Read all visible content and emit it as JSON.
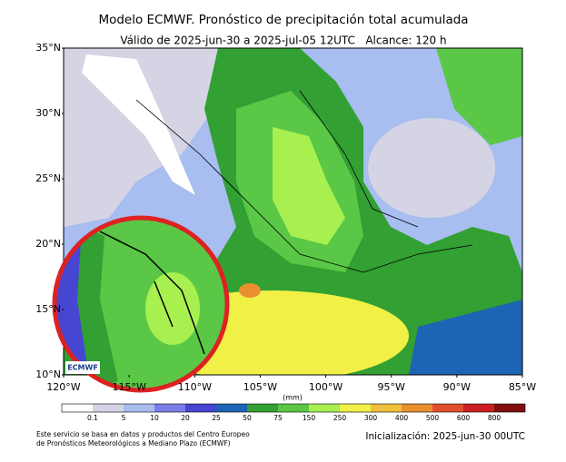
{
  "title": "Modelo ECMWF. Pronóstico de precipitación total acumulada",
  "subtitle": "Válido de 2025-jun-30 a 2025-jul-05 12UTC   Alcance: 120 h",
  "lat_labels": [
    "35°N",
    "30°N",
    "25°N",
    "20°N",
    "15°N",
    "10°N"
  ],
  "lon_labels": [
    "120°W",
    "115°W",
    "110°W",
    "105°W",
    "100°W",
    "95°W",
    "90°W",
    "85°W"
  ],
  "colorbar": {
    "unit": "(mm)",
    "labels": [
      "0.1",
      "5",
      "10",
      "20",
      "25",
      "50",
      "75",
      "150",
      "250",
      "300",
      "400",
      "500",
      "600",
      "800"
    ],
    "colors": [
      "#ffffff",
      "#d4d4e4",
      "#a8bdf0",
      "#7c7ce8",
      "#4646d2",
      "#1e64b4",
      "#32a032",
      "#5ac846",
      "#a8f050",
      "#f0f046",
      "#f0c03c",
      "#e89030",
      "#e05030",
      "#cc2020",
      "#801010"
    ]
  },
  "footer": {
    "source": [
      "Este servicio se basa en datos y productos del Centro Europeo",
      "de Pronósticos Meteorológicos a Mediano Plazo (ECMWF)"
    ],
    "init": "Inicialización: 2025-jun-30 00UTC"
  },
  "logo": "ECMWF"
}
